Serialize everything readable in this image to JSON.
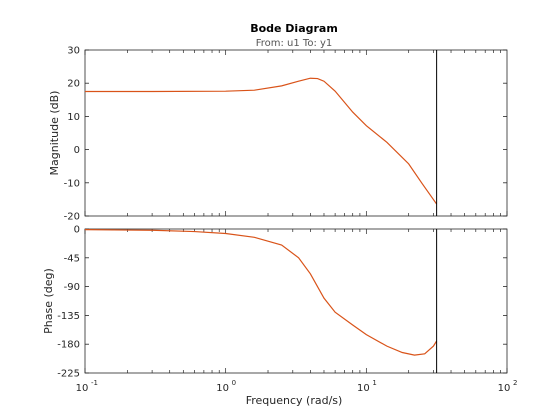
{
  "chart_data": {
    "type": "line",
    "title": "Bode Diagram",
    "subtitle": "From: u1  To: y1",
    "xlabel": "Frequency  (rad/s)",
    "xscale": "log",
    "xlim": [
      0.1,
      100
    ],
    "x_ticks": [
      0.1,
      1,
      10,
      100
    ],
    "x_tick_labels": [
      {
        "base": "10",
        "exp": "-1"
      },
      {
        "base": "10",
        "exp": "0"
      },
      {
        "base": "10",
        "exp": "1"
      },
      {
        "base": "10",
        "exp": "2"
      }
    ],
    "cursor_x": 31.6,
    "line_color": "#d95319",
    "cursor_color": "#000000",
    "grid": false,
    "panels": [
      {
        "name": "magnitude",
        "ylabel": "Magnitude (dB)",
        "ylim": [
          -20,
          30
        ],
        "y_ticks": [
          -20,
          -10,
          0,
          10,
          20,
          30
        ],
        "y_tick_labels": [
          "-20",
          "-10",
          "0",
          "10",
          "20",
          "30"
        ],
        "series": [
          {
            "x": [
              0.1,
              0.3,
              1.0,
              1.6,
              2.5,
              3.3,
              4.0,
              4.5,
              5.0,
              6.0,
              8.0,
              10.0,
              14.0,
              20.0,
              25.0,
              31.6
            ],
            "y": [
              17.5,
              17.5,
              17.6,
              17.9,
              19.2,
              20.6,
              21.5,
              21.4,
              20.6,
              17.6,
              11.3,
              7.2,
              2.2,
              -4.3,
              -10.3,
              -16.4
            ]
          }
        ]
      },
      {
        "name": "phase",
        "ylabel": "Phase (deg)",
        "ylim": [
          -225,
          0
        ],
        "y_ticks": [
          -225,
          -180,
          -135,
          -90,
          -45,
          0
        ],
        "y_tick_labels": [
          "-225",
          "-180",
          "-135",
          "-90",
          "-45",
          "0"
        ],
        "series": [
          {
            "x": [
              0.1,
              0.3,
              0.6,
              1.0,
              1.6,
              2.5,
              3.3,
              4.0,
              5.0,
              6.0,
              8.0,
              10.0,
              14.0,
              18.0,
              22.0,
              26.0,
              30.0,
              31.6
            ],
            "y": [
              -1,
              -2,
              -4,
              -7,
              -13,
              -25,
              -45,
              -70,
              -108,
              -130,
              -150,
              -165,
              -183,
              -193,
              -197,
              -195,
              -183,
              -175
            ]
          }
        ]
      }
    ]
  }
}
